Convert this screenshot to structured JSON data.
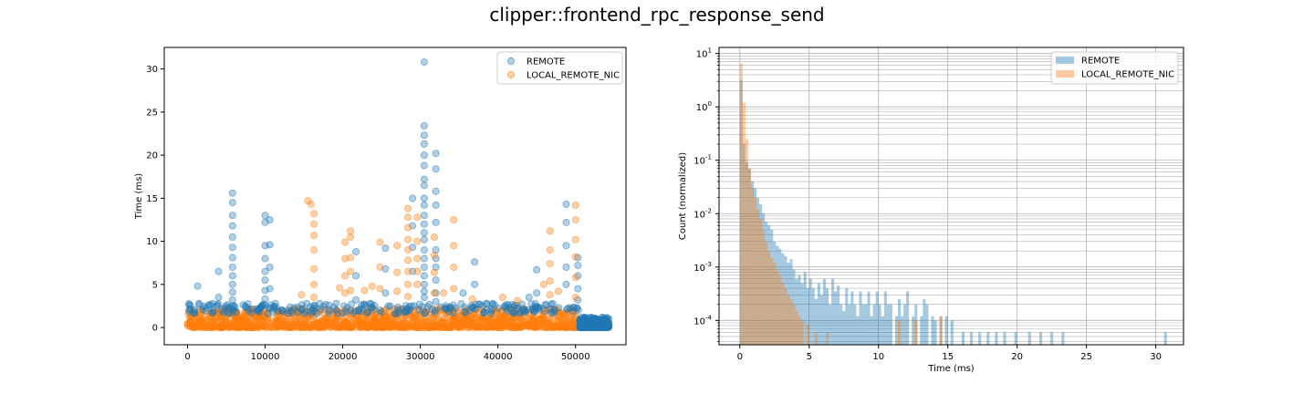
{
  "figure": {
    "title": "clipper::frontend_rpc_response_send"
  },
  "colors": {
    "remote": "#1f77b4",
    "local": "#ff7f0e"
  },
  "chart_data": [
    {
      "type": "scatter",
      "title": "",
      "xlabel": "",
      "ylabel": "Time (ms)",
      "xlim": [
        -3000,
        56500
      ],
      "ylim": [
        -2,
        32.5
      ],
      "xticks": [
        0,
        10000,
        20000,
        30000,
        40000,
        50000
      ],
      "yticks": [
        0,
        5,
        10,
        15,
        20,
        25,
        30
      ],
      "legend": "top-right",
      "grid": false,
      "series": [
        {
          "name": "REMOTE",
          "points": [
            [
              30500,
              30.8
            ],
            [
              30500,
              23.4
            ],
            [
              30500,
              22.3
            ],
            [
              30500,
              21.3
            ],
            [
              30500,
              20.0
            ],
            [
              30500,
              18.8
            ],
            [
              30500,
              17.2
            ],
            [
              30500,
              16.5
            ],
            [
              30500,
              15.0
            ],
            [
              30500,
              14.2
            ],
            [
              30500,
              13.0
            ],
            [
              30500,
              12.0
            ],
            [
              30500,
              11.0
            ],
            [
              30500,
              10.2
            ],
            [
              30500,
              9.0
            ],
            [
              30500,
              8.0
            ],
            [
              30500,
              7.0
            ],
            [
              30500,
              6.0
            ],
            [
              30500,
              5.0
            ],
            [
              30500,
              4.2
            ],
            [
              30500,
              3.5
            ],
            [
              32000,
              20.2
            ],
            [
              32000,
              18.4
            ],
            [
              32000,
              15.8
            ],
            [
              32000,
              14.2
            ],
            [
              32000,
              12.2
            ],
            [
              32000,
              9.0
            ],
            [
              32000,
              8.0
            ],
            [
              32000,
              7.0
            ],
            [
              32000,
              5.5
            ],
            [
              32000,
              4.0
            ],
            [
              32000,
              3.0
            ],
            [
              5800,
              15.6
            ],
            [
              5800,
              14.5
            ],
            [
              5800,
              13.0
            ],
            [
              5800,
              11.8
            ],
            [
              5800,
              10.5
            ],
            [
              5800,
              9.3
            ],
            [
              5800,
              8.1
            ],
            [
              5800,
              7.0
            ],
            [
              5800,
              6.0
            ],
            [
              5800,
              5.0
            ],
            [
              5800,
              4.1
            ],
            [
              5800,
              3.2
            ],
            [
              5800,
              2.5
            ],
            [
              10000,
              13.0
            ],
            [
              10000,
              12.2
            ],
            [
              10000,
              9.5
            ],
            [
              10000,
              8.0
            ],
            [
              10000,
              6.5
            ],
            [
              10000,
              5.5
            ],
            [
              10000,
              4.3
            ],
            [
              10000,
              3.3
            ],
            [
              10000,
              2.6
            ],
            [
              10600,
              12.5
            ],
            [
              10600,
              9.6
            ],
            [
              10600,
              7.0
            ],
            [
              10600,
              4.5
            ],
            [
              48800,
              14.3
            ],
            [
              48800,
              12.2
            ],
            [
              48800,
              9.5
            ],
            [
              48800,
              7.0
            ],
            [
              48800,
              5.0
            ],
            [
              50300,
              8.1
            ],
            [
              50300,
              7.2
            ],
            [
              50300,
              6.0
            ],
            [
              50300,
              4.5
            ],
            [
              50300,
              3.2
            ],
            [
              29000,
              15.0
            ],
            [
              29000,
              11.8
            ],
            [
              29000,
              9.3
            ],
            [
              29000,
              6.5
            ],
            [
              21700,
              8.8
            ],
            [
              21700,
              6.0
            ],
            [
              21700,
              3.2
            ],
            [
              37000,
              7.6
            ],
            [
              37000,
              5.0
            ],
            [
              45000,
              6.7
            ],
            [
              45000,
              4.0
            ],
            [
              4000,
              6.5
            ],
            [
              4000,
              3.5
            ],
            [
              1300,
              4.8
            ],
            [
              25500,
              9.2
            ],
            [
              25500,
              6.8
            ],
            [
              25500,
              4.0
            ],
            [
              35500,
              4.0
            ],
            [
              38500,
              2.8
            ],
            [
              44000,
              3.5
            ]
          ]
        },
        {
          "name": "LOCAL_REMOTE_NIC",
          "points": [
            [
              15500,
              14.7
            ],
            [
              15900,
              14.3
            ],
            [
              16300,
              13.2
            ],
            [
              16300,
              12.0
            ],
            [
              16300,
              10.7
            ],
            [
              16300,
              9.0
            ],
            [
              16300,
              6.8
            ],
            [
              16300,
              5.0
            ],
            [
              16300,
              3.5
            ],
            [
              28400,
              13.8
            ],
            [
              28400,
              12.8
            ],
            [
              28400,
              11.6
            ],
            [
              28400,
              10.2
            ],
            [
              28400,
              9.0
            ],
            [
              28400,
              7.8
            ],
            [
              28400,
              6.5
            ],
            [
              28400,
              5.0
            ],
            [
              28400,
              3.6
            ],
            [
              29600,
              12.8
            ],
            [
              29600,
              10.0
            ],
            [
              29600,
              8.0
            ],
            [
              29600,
              6.5
            ],
            [
              29600,
              5.0
            ],
            [
              50000,
              14.2
            ],
            [
              50000,
              12.5
            ],
            [
              50000,
              10.2
            ],
            [
              50000,
              8.2
            ],
            [
              50000,
              5.8
            ],
            [
              50000,
              3.5
            ],
            [
              21000,
              11.2
            ],
            [
              21000,
              10.5
            ],
            [
              21000,
              8.1
            ],
            [
              21000,
              6.5
            ],
            [
              21000,
              4.3
            ],
            [
              20300,
              9.9
            ],
            [
              20300,
              8.0
            ],
            [
              20300,
              6.0
            ],
            [
              20300,
              4.0
            ],
            [
              24800,
              9.9
            ],
            [
              24800,
              7.0
            ],
            [
              24800,
              4.5
            ],
            [
              27000,
              9.5
            ],
            [
              27000,
              6.4
            ],
            [
              27000,
              4.2
            ],
            [
              31800,
              10.5
            ],
            [
              31800,
              8.4
            ],
            [
              31800,
              6.4
            ],
            [
              31800,
              4.0
            ],
            [
              34300,
              12.5
            ],
            [
              34300,
              9.5
            ],
            [
              34300,
              7.0
            ],
            [
              34300,
              4.5
            ],
            [
              46700,
              11.2
            ],
            [
              46700,
              9.0
            ],
            [
              46700,
              7.4
            ],
            [
              46700,
              5.4
            ],
            [
              46700,
              3.8
            ],
            [
              23800,
              4.8
            ],
            [
              19600,
              4.6
            ],
            [
              14700,
              3.8
            ],
            [
              22800,
              4.3
            ],
            [
              33000,
              4.0
            ],
            [
              36700,
              3.3
            ],
            [
              40600,
              3.5
            ],
            [
              42500,
              3.1
            ],
            [
              45900,
              5.0
            ],
            [
              47800,
              4.2
            ]
          ]
        }
      ]
    },
    {
      "type": "bar",
      "subtype": "histogram",
      "title": "",
      "xlabel": "Time (ms)",
      "ylabel": "Count (normalized)",
      "xlim": [
        -1.5,
        32.0
      ],
      "ylim": [
        3.5e-05,
        13.0
      ],
      "yscale": "log",
      "xticks": [
        0,
        5,
        10,
        15,
        20,
        25,
        30
      ],
      "yticks": [
        "10^-4",
        "10^-3",
        "10^-2",
        "10^-1",
        "10^0",
        "10^1"
      ],
      "legend": "top-right",
      "grid": true,
      "bin_width": 0.2,
      "series": [
        {
          "name": "REMOTE",
          "bins": [
            [
              0.0,
              3.2
            ],
            [
              0.2,
              0.2
            ],
            [
              0.4,
              0.09
            ],
            [
              0.6,
              0.07
            ],
            [
              0.8,
              0.04
            ],
            [
              1.0,
              0.03
            ],
            [
              1.2,
              0.02
            ],
            [
              1.4,
              0.015
            ],
            [
              1.6,
              0.01
            ],
            [
              1.8,
              0.007
            ],
            [
              2.0,
              0.006
            ],
            [
              2.2,
              0.005
            ],
            [
              2.4,
              0.003
            ],
            [
              2.6,
              0.0025
            ],
            [
              2.8,
              0.0022
            ],
            [
              3.0,
              0.0018
            ],
            [
              3.2,
              0.0016
            ],
            [
              3.4,
              0.0012
            ],
            [
              3.6,
              0.0014
            ],
            [
              3.8,
              0.0009
            ],
            [
              4.0,
              0.0006
            ],
            [
              4.2,
              0.0007
            ],
            [
              4.4,
              0.0005
            ],
            [
              4.6,
              0.0008
            ],
            [
              4.8,
              0.0004
            ],
            [
              5.0,
              0.0006
            ],
            [
              5.2,
              0.0004
            ],
            [
              5.4,
              0.00025
            ],
            [
              5.6,
              0.0005
            ],
            [
              5.8,
              0.0003
            ],
            [
              6.0,
              0.0006
            ],
            [
              6.2,
              0.0004
            ],
            [
              6.4,
              0.0002
            ],
            [
              6.6,
              0.0006
            ],
            [
              6.8,
              0.00035
            ],
            [
              7.0,
              0.00045
            ],
            [
              7.2,
              0.0002
            ],
            [
              7.4,
              0.00015
            ],
            [
              7.6,
              0.0004
            ],
            [
              7.8,
              0.0002
            ],
            [
              8.0,
              0.00035
            ],
            [
              8.2,
              0.0002
            ],
            [
              8.4,
              0.00012
            ],
            [
              8.6,
              0.00035
            ],
            [
              8.8,
              0.0002
            ],
            [
              9.0,
              0.0002
            ],
            [
              9.2,
              0.00035
            ],
            [
              9.4,
              0.00012
            ],
            [
              9.6,
              0.0002
            ],
            [
              9.8,
              0.00035
            ],
            [
              10.0,
              0.0002
            ],
            [
              10.2,
              0.00012
            ],
            [
              10.4,
              0.00035
            ],
            [
              10.6,
              0.0002
            ],
            [
              10.8,
              0.0002
            ],
            [
              11.2,
              0.00012
            ],
            [
              11.4,
              0.00025
            ],
            [
              11.6,
              0.00012
            ],
            [
              11.8,
              0.0002
            ],
            [
              12.0,
              0.00035
            ],
            [
              12.4,
              0.00012
            ],
            [
              12.6,
              0.0002
            ],
            [
              13.0,
              0.00012
            ],
            [
              13.2,
              0.00025
            ],
            [
              13.4,
              0.0002
            ],
            [
              13.8,
              0.00012
            ],
            [
              14.0,
              0.0001
            ],
            [
              14.4,
              0.00012
            ],
            [
              14.8,
              0.00012
            ],
            [
              15.2,
              0.0001
            ],
            [
              16.0,
              6e-05
            ],
            [
              16.6,
              6e-05
            ],
            [
              17.2,
              6e-05
            ],
            [
              17.8,
              6e-05
            ],
            [
              18.4,
              6e-05
            ],
            [
              19.0,
              6e-05
            ],
            [
              19.8,
              6e-05
            ],
            [
              20.8,
              6e-05
            ],
            [
              21.6,
              6e-05
            ],
            [
              22.4,
              6e-05
            ],
            [
              23.2,
              6e-05
            ],
            [
              30.6,
              6e-05
            ]
          ]
        },
        {
          "name": "LOCAL_REMOTE_NIC",
          "bins": [
            [
              0.0,
              6.5
            ],
            [
              0.2,
              1.2
            ],
            [
              0.4,
              0.25
            ],
            [
              0.6,
              0.07
            ],
            [
              0.8,
              0.03
            ],
            [
              1.0,
              0.02
            ],
            [
              1.2,
              0.012
            ],
            [
              1.4,
              0.008
            ],
            [
              1.6,
              0.005
            ],
            [
              1.8,
              0.003
            ],
            [
              2.0,
              0.002
            ],
            [
              2.2,
              0.0015
            ],
            [
              2.4,
              0.0012
            ],
            [
              2.6,
              0.0009
            ],
            [
              2.8,
              0.0007
            ],
            [
              3.0,
              0.0005
            ],
            [
              3.2,
              0.0004
            ],
            [
              3.4,
              0.0003
            ],
            [
              3.6,
              0.00025
            ],
            [
              3.8,
              0.0002
            ],
            [
              4.0,
              0.00015
            ],
            [
              4.2,
              0.00012
            ],
            [
              4.4,
              0.0001
            ],
            [
              4.8,
              8e-05
            ],
            [
              5.4,
              6e-05
            ],
            [
              6.2,
              6e-05
            ],
            [
              11.4,
              0.0001
            ],
            [
              12.6,
              0.0001
            ],
            [
              14.4,
              0.00012
            ]
          ]
        }
      ]
    }
  ]
}
